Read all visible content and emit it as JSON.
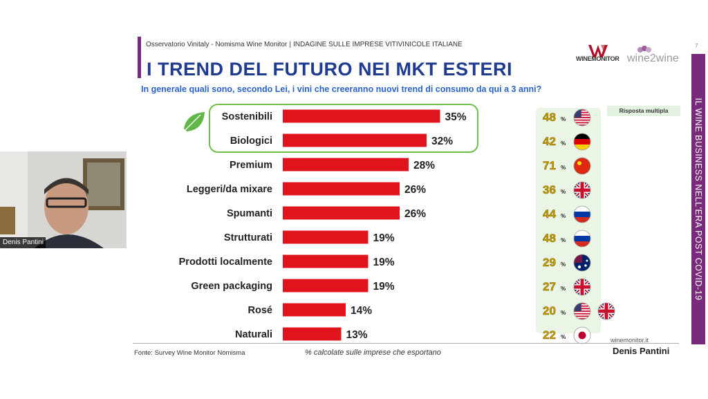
{
  "header": {
    "breadcrumb_left": "Osservatorio Vinitaly - Nomisma Wine Monitor",
    "breadcrumb_sep": "|",
    "breadcrumb_right": "INDAGINE SULLE IMPRESE VITIVINICOLE ITALIANE",
    "page_number": "7",
    "logo_winemonitor": "WINEMONITOR",
    "logo_wine2wine": "wine2wine"
  },
  "sidebar_text": "IL WINE BUSINESS NELL'ERA POST COVID-19",
  "webcam": {
    "name": "Denis Pantini"
  },
  "footer": {
    "source": "Fonte: Survey Wine Monitor Nomisma",
    "footnote": "% calcolate sulle imprese che esportano",
    "site": "winemonitor.it",
    "author": "Denis Pantini"
  },
  "badge": "Risposta multipla",
  "colors": {
    "bar": "#e0141c",
    "title": "#1f3b8f",
    "question": "#2a63c4",
    "accent": "#7a2a7a",
    "highlight": "#6cc04a",
    "side_value": "#c9a000"
  },
  "chart_data": {
    "type": "bar",
    "orientation": "horizontal",
    "title": "I TREND DEL FUTURO NEI MKT ESTERI",
    "subtitle": "In generale quali sono, secondo Lei, i vini che creeranno nuovi trend di consumo da qui a 3 anni?",
    "categories": [
      "Sostenibili",
      "Biologici",
      "Premium",
      "Leggeri/da mixare",
      "Spumanti",
      "Strutturati",
      "Prodotti localmente",
      "Green packaging",
      "Rosé",
      "Naturali"
    ],
    "values": [
      35,
      32,
      28,
      26,
      26,
      19,
      19,
      19,
      14,
      13
    ],
    "value_labels": [
      "35%",
      "32%",
      "28%",
      "26%",
      "26%",
      "19%",
      "19%",
      "19%",
      "14%",
      "13%"
    ],
    "highlighted_categories": [
      "Sostenibili",
      "Biologici"
    ],
    "top_market": [
      {
        "value": "48",
        "unit": "%",
        "flags": [
          "us-flag"
        ]
      },
      {
        "value": "42",
        "unit": "%",
        "flags": [
          "de-flag"
        ]
      },
      {
        "value": "71",
        "unit": "%",
        "flags": [
          "cn-flag"
        ]
      },
      {
        "value": "36",
        "unit": "%",
        "flags": [
          "uk-flag"
        ]
      },
      {
        "value": "44",
        "unit": "%",
        "flags": [
          "ru-flag"
        ]
      },
      {
        "value": "48",
        "unit": "%",
        "flags": [
          "ru-flag"
        ]
      },
      {
        "value": "29",
        "unit": "%",
        "flags": [
          "au-flag"
        ]
      },
      {
        "value": "27",
        "unit": "%",
        "flags": [
          "uk-flag"
        ]
      },
      {
        "value": "20",
        "unit": "%",
        "flags": [
          "us-flag",
          "uk-flag"
        ]
      },
      {
        "value": "22",
        "unit": "%",
        "flags": [
          "jp-flag"
        ]
      }
    ]
  }
}
